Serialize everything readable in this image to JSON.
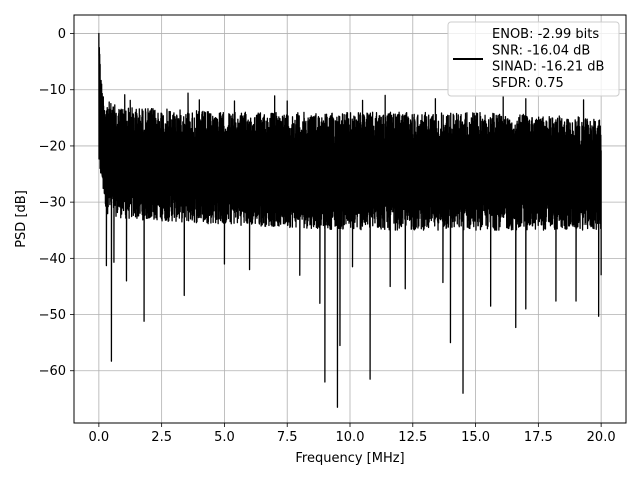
{
  "chart_data": {
    "type": "line",
    "title": "",
    "xlabel": "Frequency [MHz]",
    "ylabel": "PSD [dB]",
    "xlim": [
      -0.99,
      20.99
    ],
    "ylim": [
      -69.3,
      3.3
    ],
    "x_ticks": [
      0.0,
      2.5,
      5.0,
      7.5,
      10.0,
      12.5,
      15.0,
      17.5,
      20.0
    ],
    "x_tick_labels": [
      "0.0",
      "2.5",
      "5.0",
      "7.5",
      "10.0",
      "12.5",
      "15.0",
      "17.5",
      "20.0"
    ],
    "y_ticks": [
      0,
      -10,
      -20,
      -30,
      -40,
      -50,
      -60
    ],
    "y_tick_labels": [
      "0",
      "−10",
      "−20",
      "−30",
      "−40",
      "−50",
      "−60"
    ],
    "grid": true,
    "legend_position": "top-right",
    "legend_entries": [
      "ENOB: -2.99 bits",
      "SNR: -16.04 dB",
      "SINAD: -16.21 dB",
      "SFDR: 0.75"
    ],
    "series": [
      {
        "color": "#000000",
        "x_range": [
          0,
          20
        ],
        "band_upper": [
          [
            0.0,
            0.0
          ],
          [
            0.05,
            -4
          ],
          [
            0.1,
            -8
          ],
          [
            0.2,
            -11
          ],
          [
            0.5,
            -12.5
          ],
          [
            1.0,
            -13
          ],
          [
            3.0,
            -13.5
          ],
          [
            5.0,
            -14
          ],
          [
            10.0,
            -14
          ],
          [
            15.0,
            -14
          ],
          [
            20.0,
            -15
          ]
        ],
        "band_lower": [
          [
            0.0,
            -24
          ],
          [
            0.3,
            -32
          ],
          [
            1.0,
            -33
          ],
          [
            5.0,
            -34
          ],
          [
            10.0,
            -35
          ],
          [
            15.0,
            -35
          ],
          [
            20.0,
            -35
          ]
        ],
        "peaks": [
          [
            0.0,
            0.0
          ],
          [
            0.02,
            -2.5
          ],
          [
            0.05,
            -5.5
          ],
          [
            1.03,
            -10.9
          ],
          [
            1.25,
            -11.9
          ],
          [
            3.55,
            -10.6
          ],
          [
            4.0,
            -11.8
          ],
          [
            5.4,
            -12.0
          ],
          [
            7.0,
            -11.1
          ],
          [
            7.5,
            -12.0
          ],
          [
            10.5,
            -11.9
          ],
          [
            11.4,
            -11.0
          ],
          [
            13.4,
            -11.6
          ],
          [
            16.1,
            -11.2
          ],
          [
            17.0,
            -11.6
          ],
          [
            19.3,
            -11.8
          ]
        ],
        "dips": [
          [
            0.05,
            -24.0
          ],
          [
            0.3,
            -41.3
          ],
          [
            0.5,
            -58.3
          ],
          [
            0.6,
            -40.7
          ],
          [
            1.1,
            -44.0
          ],
          [
            1.8,
            -51.2
          ],
          [
            3.4,
            -46.6
          ],
          [
            5.0,
            -41.0
          ],
          [
            6.0,
            -42.0
          ],
          [
            8.0,
            -43.0
          ],
          [
            8.8,
            -48.0
          ],
          [
            9.0,
            -62.0
          ],
          [
            9.5,
            -66.5
          ],
          [
            9.6,
            -55.5
          ],
          [
            10.1,
            -41.5
          ],
          [
            10.8,
            -61.5
          ],
          [
            11.6,
            -45.0
          ],
          [
            12.2,
            -45.4
          ],
          [
            13.7,
            -44.3
          ],
          [
            14.0,
            -55.0
          ],
          [
            14.5,
            -64.0
          ],
          [
            15.6,
            -48.5
          ],
          [
            16.6,
            -52.3
          ],
          [
            17.0,
            -49.0
          ],
          [
            18.2,
            -47.6
          ],
          [
            19.0,
            -47.6
          ],
          [
            19.9,
            -50.3
          ],
          [
            20.0,
            -43.0
          ]
        ]
      }
    ]
  }
}
